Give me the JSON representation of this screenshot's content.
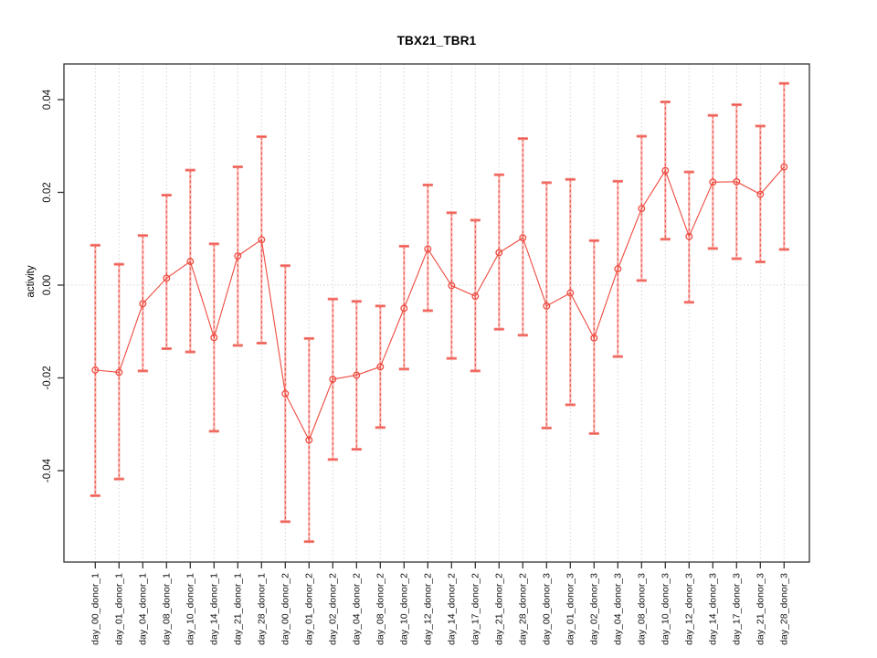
{
  "window": {
    "title": "TBX21_TBR1 activity plot"
  },
  "colors": {
    "series_red": "#ee4b40",
    "cap_pink": "#f2827b",
    "bar_underlay": "#f8bcb8",
    "grid_gray": "#d6d6d6",
    "axis_black": "#333333",
    "text_black": "#111111"
  },
  "chart_data": {
    "type": "line",
    "title": "TBX21_TBR1",
    "xlabel": "",
    "ylabel": "activity",
    "ylim": [
      -0.0597,
      0.0477
    ],
    "yticks": [
      0.04,
      0.02,
      0.0,
      -0.02,
      -0.04
    ],
    "ytick_labels": [
      "0.04",
      "0.02",
      "0.00",
      "-0.02",
      "-0.04"
    ],
    "grid": "dotted vertical gridline per category; dotted horizontal line at y=0; no legend",
    "marker": "open-circle",
    "error_bars": true,
    "categories": [
      "day_00_donor_1",
      "day_01_donor_1",
      "day_04_donor_1",
      "day_08_donor_1",
      "day_10_donor_1",
      "day_14_donor_1",
      "day_21_donor_1",
      "day_28_donor_1",
      "day_00_donor_2",
      "day_01_donor_2",
      "day_02_donor_2",
      "day_04_donor_2",
      "day_08_donor_2",
      "day_10_donor_2",
      "day_12_donor_2",
      "day_14_donor_2",
      "day_17_donor_2",
      "day_21_donor_2",
      "day_28_donor_2",
      "day_00_donor_3",
      "day_01_donor_3",
      "day_02_donor_3",
      "day_04_donor_3",
      "day_08_donor_3",
      "day_10_donor_3",
      "day_12_donor_3",
      "day_14_donor_3",
      "day_17_donor_3",
      "day_21_donor_3",
      "day_28_donor_3"
    ],
    "series": [
      {
        "name": "activity",
        "values": [
          -0.0183,
          -0.0188,
          -0.004,
          0.0015,
          0.0051,
          -0.0113,
          0.0063,
          0.0098,
          -0.0234,
          -0.0334,
          -0.0203,
          -0.0194,
          -0.0176,
          -0.005,
          0.0078,
          -0.0001,
          -0.0024,
          0.007,
          0.0102,
          -0.0045,
          -0.0017,
          -0.0114,
          0.0035,
          0.0165,
          0.0247,
          0.0105,
          0.0222,
          0.0223,
          0.0196,
          0.0255
        ],
        "err_hi": [
          0.0086,
          0.0045,
          0.0107,
          0.0194,
          0.0248,
          0.0089,
          0.0255,
          0.032,
          0.0042,
          -0.0115,
          -0.003,
          -0.0035,
          -0.0045,
          0.0084,
          0.0216,
          0.0156,
          0.014,
          0.0238,
          0.0316,
          0.0221,
          0.0228,
          0.0096,
          0.0224,
          0.0321,
          0.0395,
          0.0244,
          0.0366,
          0.0389,
          0.0343,
          0.0435
        ],
        "err_lo": [
          -0.0454,
          -0.0418,
          -0.0185,
          -0.0137,
          -0.0144,
          -0.0315,
          -0.013,
          -0.0125,
          -0.051,
          -0.0553,
          -0.0376,
          -0.0354,
          -0.0307,
          -0.0181,
          -0.0055,
          -0.0158,
          -0.0185,
          -0.0095,
          -0.0108,
          -0.0308,
          -0.0258,
          -0.032,
          -0.0154,
          0.001,
          0.0099,
          -0.0037,
          0.0079,
          0.0057,
          0.005,
          0.0077
        ]
      }
    ]
  }
}
